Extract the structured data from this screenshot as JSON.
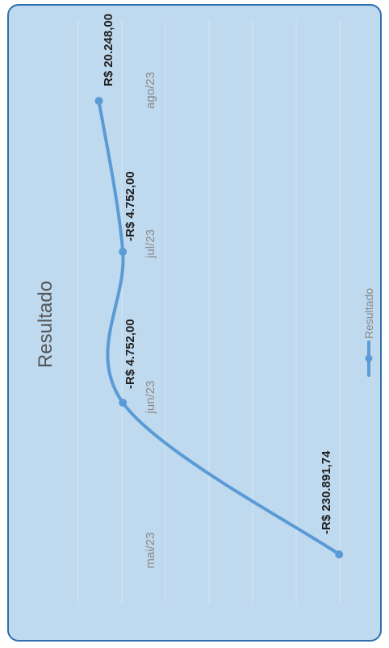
{
  "chart_data": {
    "type": "line",
    "orientation": "rotated-90-clockwise",
    "title": "Resultado",
    "categories": [
      "mai/23",
      "jun/23",
      "jul/23",
      "ago/23"
    ],
    "series": [
      {
        "name": "Resultado",
        "values": [
          -230891.74,
          -4752.0,
          -4752.0,
          20248.0
        ],
        "data_labels": [
          "-R$ 230.891,74",
          "-R$ 4.752,00",
          "-R$ 4.752,00",
          "R$ 20.248,00"
        ],
        "color": "#5b9bd5"
      }
    ],
    "ylim": [
      -240000,
      30000
    ],
    "grid": true,
    "legend": "bottom",
    "colors": {
      "background": "#bfd9ef",
      "border": "#2f6fad",
      "gridline": "#d6e6f4",
      "line": "#5b9bd5"
    }
  }
}
